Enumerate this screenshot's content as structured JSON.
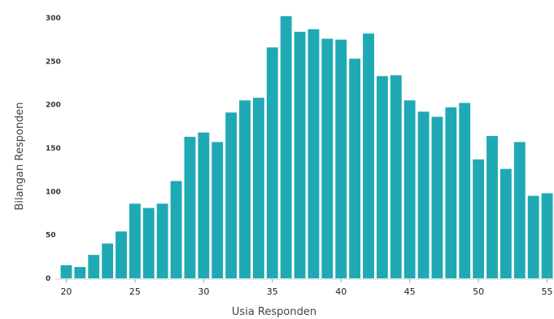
{
  "chart_data": {
    "type": "bar",
    "title": "",
    "xlabel": "Usia Responden",
    "ylabel": "Bilangan Responden",
    "x": [
      20,
      21,
      22,
      23,
      24,
      25,
      26,
      27,
      28,
      29,
      30,
      31,
      32,
      33,
      34,
      35,
      36,
      37,
      38,
      39,
      40,
      41,
      42,
      43,
      44,
      45,
      46,
      47,
      48,
      49,
      50,
      51,
      52,
      53,
      54,
      55
    ],
    "values": [
      15,
      13,
      27,
      40,
      54,
      86,
      81,
      86,
      112,
      163,
      168,
      157,
      191,
      205,
      208,
      266,
      302,
      284,
      287,
      276,
      275,
      253,
      282,
      233,
      234,
      205,
      192,
      186,
      197,
      202,
      137,
      164,
      126,
      157,
      95,
      98
    ],
    "ylim": [
      0,
      300
    ],
    "yticks": [
      0,
      50,
      100,
      150,
      200,
      250,
      300
    ],
    "xticks": [
      20,
      25,
      30,
      35,
      40,
      45,
      50,
      55
    ],
    "grid": false,
    "bar_color": "#1fa9b5"
  }
}
